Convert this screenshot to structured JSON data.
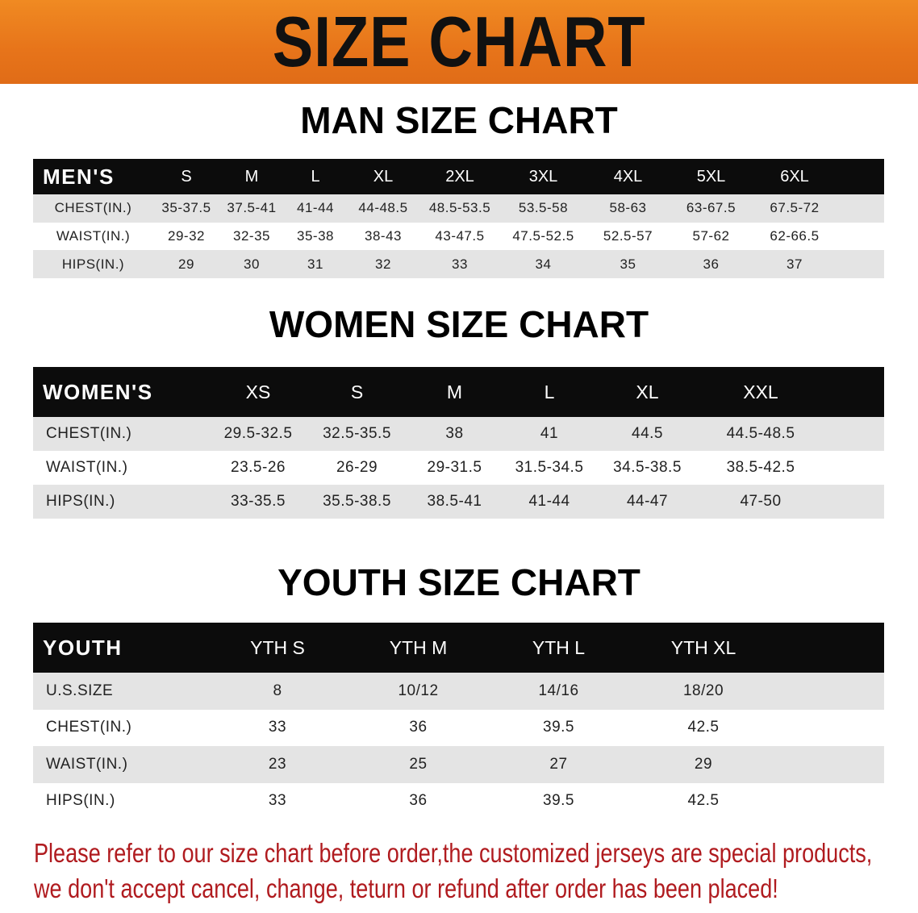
{
  "banner": {
    "title": "SIZE CHART",
    "color": "#e8761b"
  },
  "men": {
    "title": "MAN SIZE CHART",
    "header": "MEN'S",
    "sizes": [
      "S",
      "M",
      "L",
      "XL",
      "2XL",
      "3XL",
      "4XL",
      "5XL",
      "6XL",
      ""
    ],
    "rows": [
      {
        "label": "CHEST(IN.)",
        "values": [
          "35-37.5",
          "37.5-41",
          "41-44",
          "44-48.5",
          "48.5-53.5",
          "53.5-58",
          "58-63",
          "63-67.5",
          "67.5-72",
          ""
        ]
      },
      {
        "label": "WAIST(IN.)",
        "values": [
          "29-32",
          "32-35",
          "35-38",
          "38-43",
          "43-47.5",
          "47.5-52.5",
          "52.5-57",
          "57-62",
          "62-66.5",
          ""
        ]
      },
      {
        "label": "HIPS(IN.)",
        "values": [
          "29",
          "30",
          "31",
          "32",
          "33",
          "34",
          "35",
          "36",
          "37",
          ""
        ]
      }
    ]
  },
  "women": {
    "title": "WOMEN SIZE CHART",
    "header": "WOMEN'S",
    "sizes": [
      "XS",
      "S",
      "M",
      "L",
      "XL",
      "XXL",
      ""
    ],
    "rows": [
      {
        "label": "CHEST(IN.)",
        "values": [
          "29.5-32.5",
          "32.5-35.5",
          "38",
          "41",
          "44.5",
          "44.5-48.5",
          ""
        ]
      },
      {
        "label": "WAIST(IN.)",
        "values": [
          "23.5-26",
          "26-29",
          "29-31.5",
          "31.5-34.5",
          "34.5-38.5",
          "38.5-42.5",
          ""
        ]
      },
      {
        "label": "HIPS(IN.)",
        "values": [
          "33-35.5",
          "35.5-38.5",
          "38.5-41",
          "41-44",
          "44-47",
          "47-50",
          ""
        ]
      }
    ]
  },
  "youth": {
    "title": "YOUTH SIZE CHART",
    "header": "YOUTH",
    "sizes": [
      "YTH S",
      "YTH M",
      "YTH L",
      "YTH XL",
      ""
    ],
    "rows": [
      {
        "label": "U.S.SIZE",
        "values": [
          "8",
          "10/12",
          "14/16",
          "18/20",
          ""
        ]
      },
      {
        "label": "CHEST(IN.)",
        "values": [
          "33",
          "36",
          "39.5",
          "42.5",
          ""
        ]
      },
      {
        "label": "WAIST(IN.)",
        "values": [
          "23",
          "25",
          "27",
          "29",
          ""
        ]
      },
      {
        "label": "HIPS(IN.)",
        "values": [
          "33",
          "36",
          "39.5",
          "42.5",
          ""
        ]
      }
    ]
  },
  "notice": {
    "line1": "Please refer to our size chart before order,the customized jerseys are special products,",
    "line2": "we don't accept cancel, change, teturn or refund after order has been placed!",
    "color": "#b01b1f"
  }
}
